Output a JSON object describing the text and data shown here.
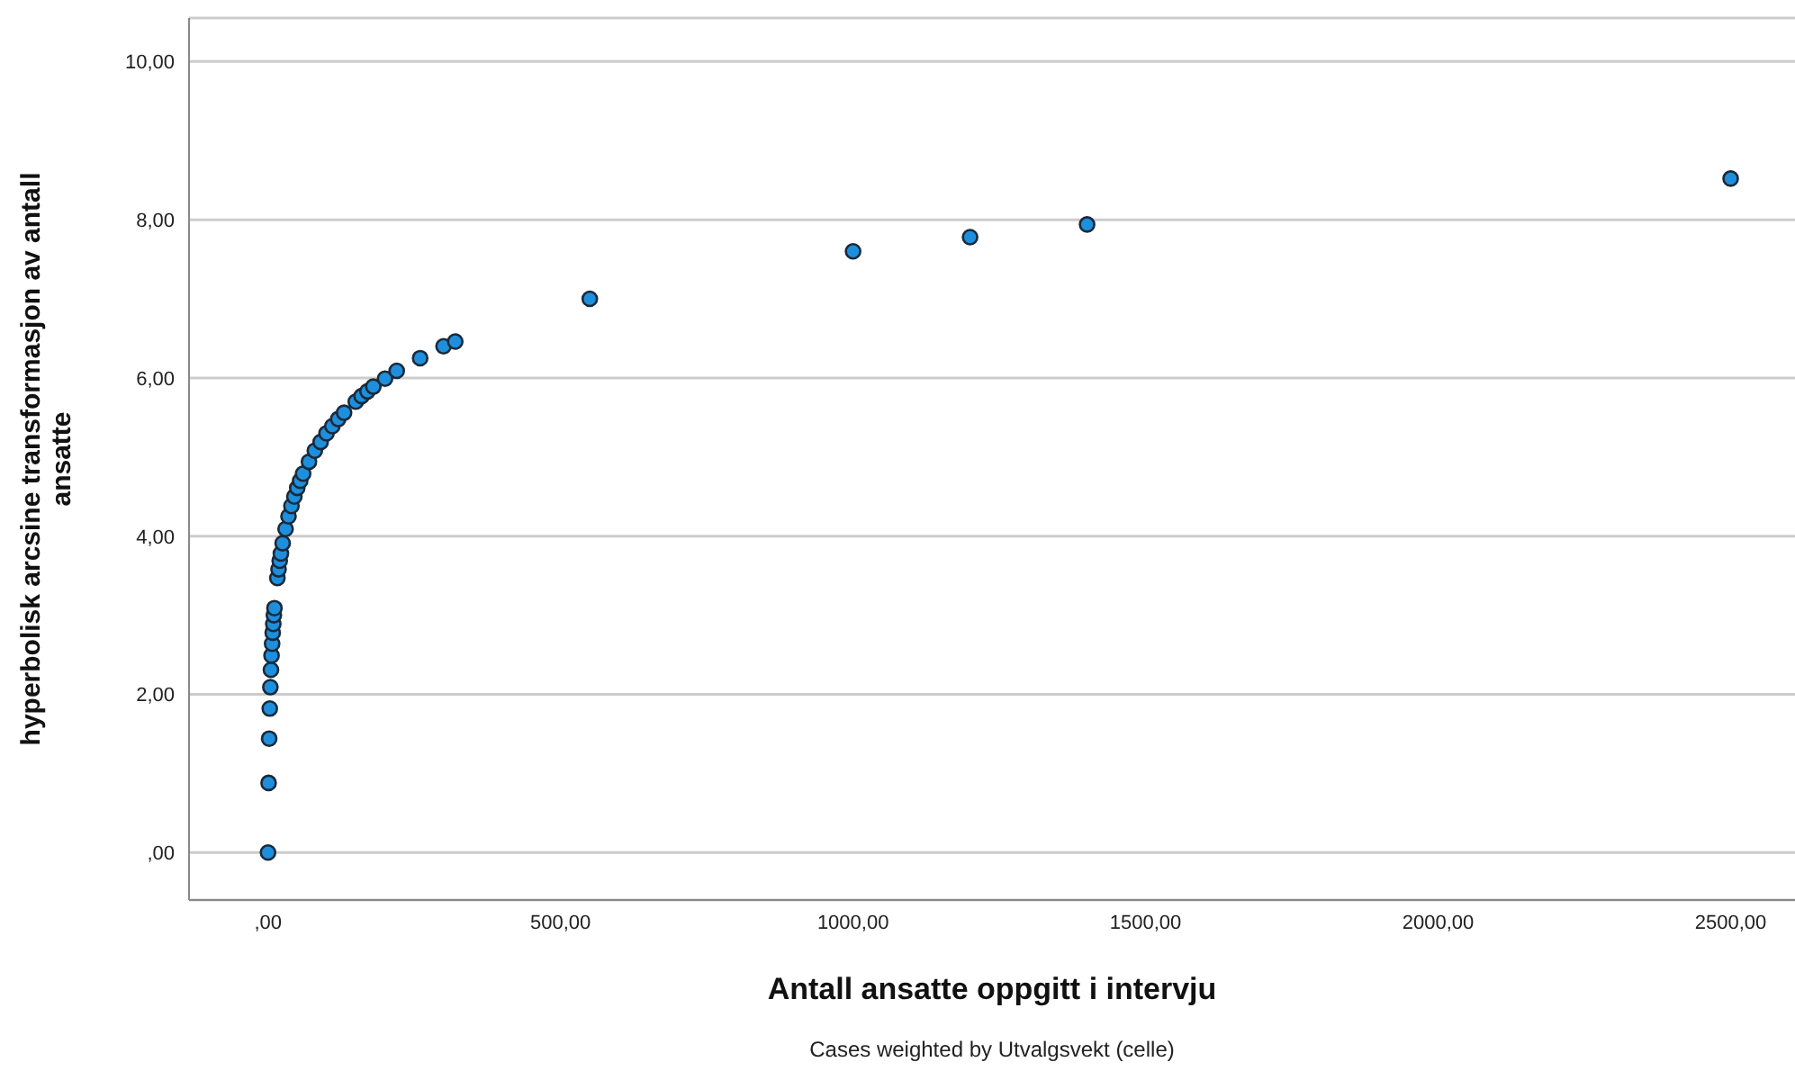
{
  "chart_data": {
    "type": "scatter",
    "xlabel": "Antall ansatte oppgitt i intervju",
    "ylabel": "hyperbolisk arcsine transformasjon av antall ansatte",
    "annotations": [
      "Cases weighted by Utvalgsvekt (celle)"
    ],
    "x": [
      0,
      1,
      2,
      3,
      4,
      5,
      6,
      7,
      8,
      9,
      10,
      11,
      16,
      18,
      20,
      22,
      25,
      30,
      35,
      40,
      45,
      50,
      55,
      60,
      70,
      80,
      90,
      100,
      110,
      120,
      130,
      150,
      160,
      170,
      180,
      200,
      220,
      260,
      300,
      320,
      550,
      1000,
      1200,
      1400,
      2500
    ],
    "values": [
      0,
      0.88,
      1.44,
      1.82,
      2.09,
      2.31,
      2.49,
      2.64,
      2.78,
      2.89,
      3.0,
      3.09,
      3.47,
      3.58,
      3.69,
      3.78,
      3.91,
      4.09,
      4.25,
      4.38,
      4.5,
      4.61,
      4.7,
      4.79,
      4.94,
      5.08,
      5.19,
      5.3,
      5.39,
      5.48,
      5.56,
      5.7,
      5.77,
      5.83,
      5.89,
      5.99,
      6.09,
      6.25,
      6.4,
      6.46,
      7.0,
      7.6,
      7.78,
      7.94,
      8.52
    ],
    "color": "#1e8fdc",
    "marker": "circle",
    "grid": "y",
    "legend": false,
    "xlim": [
      -135,
      2610
    ],
    "ylim": [
      -0.6,
      10.55
    ],
    "xticks": [
      {
        "value": 0,
        "label": ",00"
      },
      {
        "value": 500,
        "label": "500,00"
      },
      {
        "value": 1000,
        "label": "1000,00"
      },
      {
        "value": 1500,
        "label": "1500,00"
      },
      {
        "value": 2000,
        "label": "2000,00"
      },
      {
        "value": 2500,
        "label": "2500,00"
      }
    ],
    "yticks": [
      {
        "value": 0,
        "label": ",00"
      },
      {
        "value": 2,
        "label": "2,00"
      },
      {
        "value": 4,
        "label": "4,00"
      },
      {
        "value": 6,
        "label": "6,00"
      },
      {
        "value": 8,
        "label": "8,00"
      },
      {
        "value": 10,
        "label": "10,00"
      }
    ]
  }
}
